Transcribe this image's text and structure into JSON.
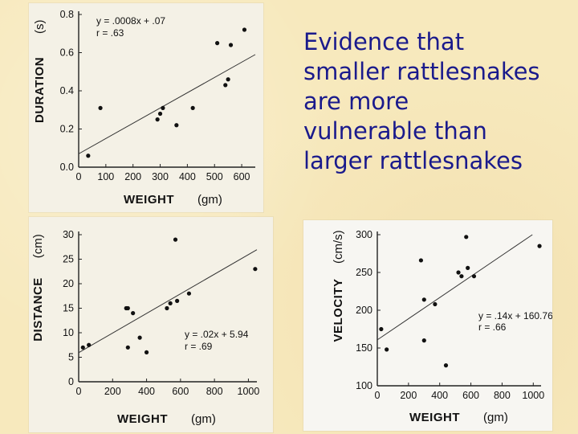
{
  "slide": {
    "heading_lines": [
      "Evidence that",
      "smaller rattlesnakes",
      "are more",
      "vulnerable than",
      "larger rattlesnakes"
    ]
  },
  "colors": {
    "heading": "#1a1a8c",
    "panel": "#f4f1e6",
    "slide": "#f7e9bd"
  },
  "chart_data": [
    {
      "id": "duration",
      "type": "scatter",
      "xlabel": "WEIGHT",
      "xunit": "(gm)",
      "ylabel": "DURATION",
      "yunit": "(s)",
      "xlim": [
        0,
        650
      ],
      "ylim": [
        0,
        0.8
      ],
      "x_ticks": [
        0,
        100,
        200,
        300,
        400,
        500,
        600
      ],
      "y_ticks": [
        0.0,
        0.2,
        0.4,
        0.6,
        0.8
      ],
      "equation": "y = .0008x + .07",
      "r": "r = .63",
      "fit": {
        "slope": 0.0008,
        "intercept": 0.07
      },
      "points": [
        [
          35,
          0.06
        ],
        [
          80,
          0.31
        ],
        [
          290,
          0.25
        ],
        [
          300,
          0.28
        ],
        [
          310,
          0.31
        ],
        [
          360,
          0.22
        ],
        [
          420,
          0.31
        ],
        [
          510,
          0.65
        ],
        [
          540,
          0.43
        ],
        [
          550,
          0.46
        ],
        [
          560,
          0.64
        ],
        [
          610,
          0.72
        ]
      ]
    },
    {
      "id": "distance",
      "type": "scatter",
      "xlabel": "WEIGHT",
      "xunit": "(gm)",
      "ylabel": "DISTANCE",
      "yunit": "(cm)",
      "xlim": [
        0,
        1050
      ],
      "ylim": [
        0,
        30
      ],
      "x_ticks": [
        0,
        200,
        400,
        600,
        800,
        1000
      ],
      "y_ticks": [
        0,
        5,
        10,
        15,
        20,
        25,
        30
      ],
      "equation": "y = .02x + 5.94",
      "r": "r = .69",
      "fit": {
        "slope": 0.02,
        "intercept": 5.94
      },
      "points": [
        [
          25,
          7
        ],
        [
          60,
          7.5
        ],
        [
          280,
          15
        ],
        [
          290,
          15
        ],
        [
          290,
          7
        ],
        [
          320,
          14
        ],
        [
          360,
          9
        ],
        [
          400,
          6
        ],
        [
          520,
          15
        ],
        [
          540,
          16
        ],
        [
          570,
          29
        ],
        [
          580,
          16.5
        ],
        [
          650,
          18
        ],
        [
          1040,
          23
        ]
      ]
    },
    {
      "id": "velocity",
      "type": "scatter",
      "xlabel": "WEIGHT",
      "xunit": "(gm)",
      "ylabel": "VELOCITY",
      "yunit": "(cm/s)",
      "xlim": [
        0,
        1050
      ],
      "ylim": [
        100,
        300
      ],
      "x_ticks": [
        0,
        200,
        400,
        600,
        800,
        1000
      ],
      "y_ticks": [
        100,
        150,
        200,
        250,
        300
      ],
      "equation": "y = .14x + 160.76",
      "r": "r = .66",
      "fit": {
        "slope": 0.14,
        "intercept": 160.76
      },
      "points": [
        [
          25,
          175
        ],
        [
          60,
          148
        ],
        [
          280,
          266
        ],
        [
          300,
          214
        ],
        [
          300,
          160
        ],
        [
          370,
          208
        ],
        [
          440,
          127
        ],
        [
          520,
          250
        ],
        [
          540,
          245
        ],
        [
          570,
          297
        ],
        [
          580,
          256
        ],
        [
          620,
          245
        ],
        [
          1040,
          285
        ]
      ]
    }
  ]
}
